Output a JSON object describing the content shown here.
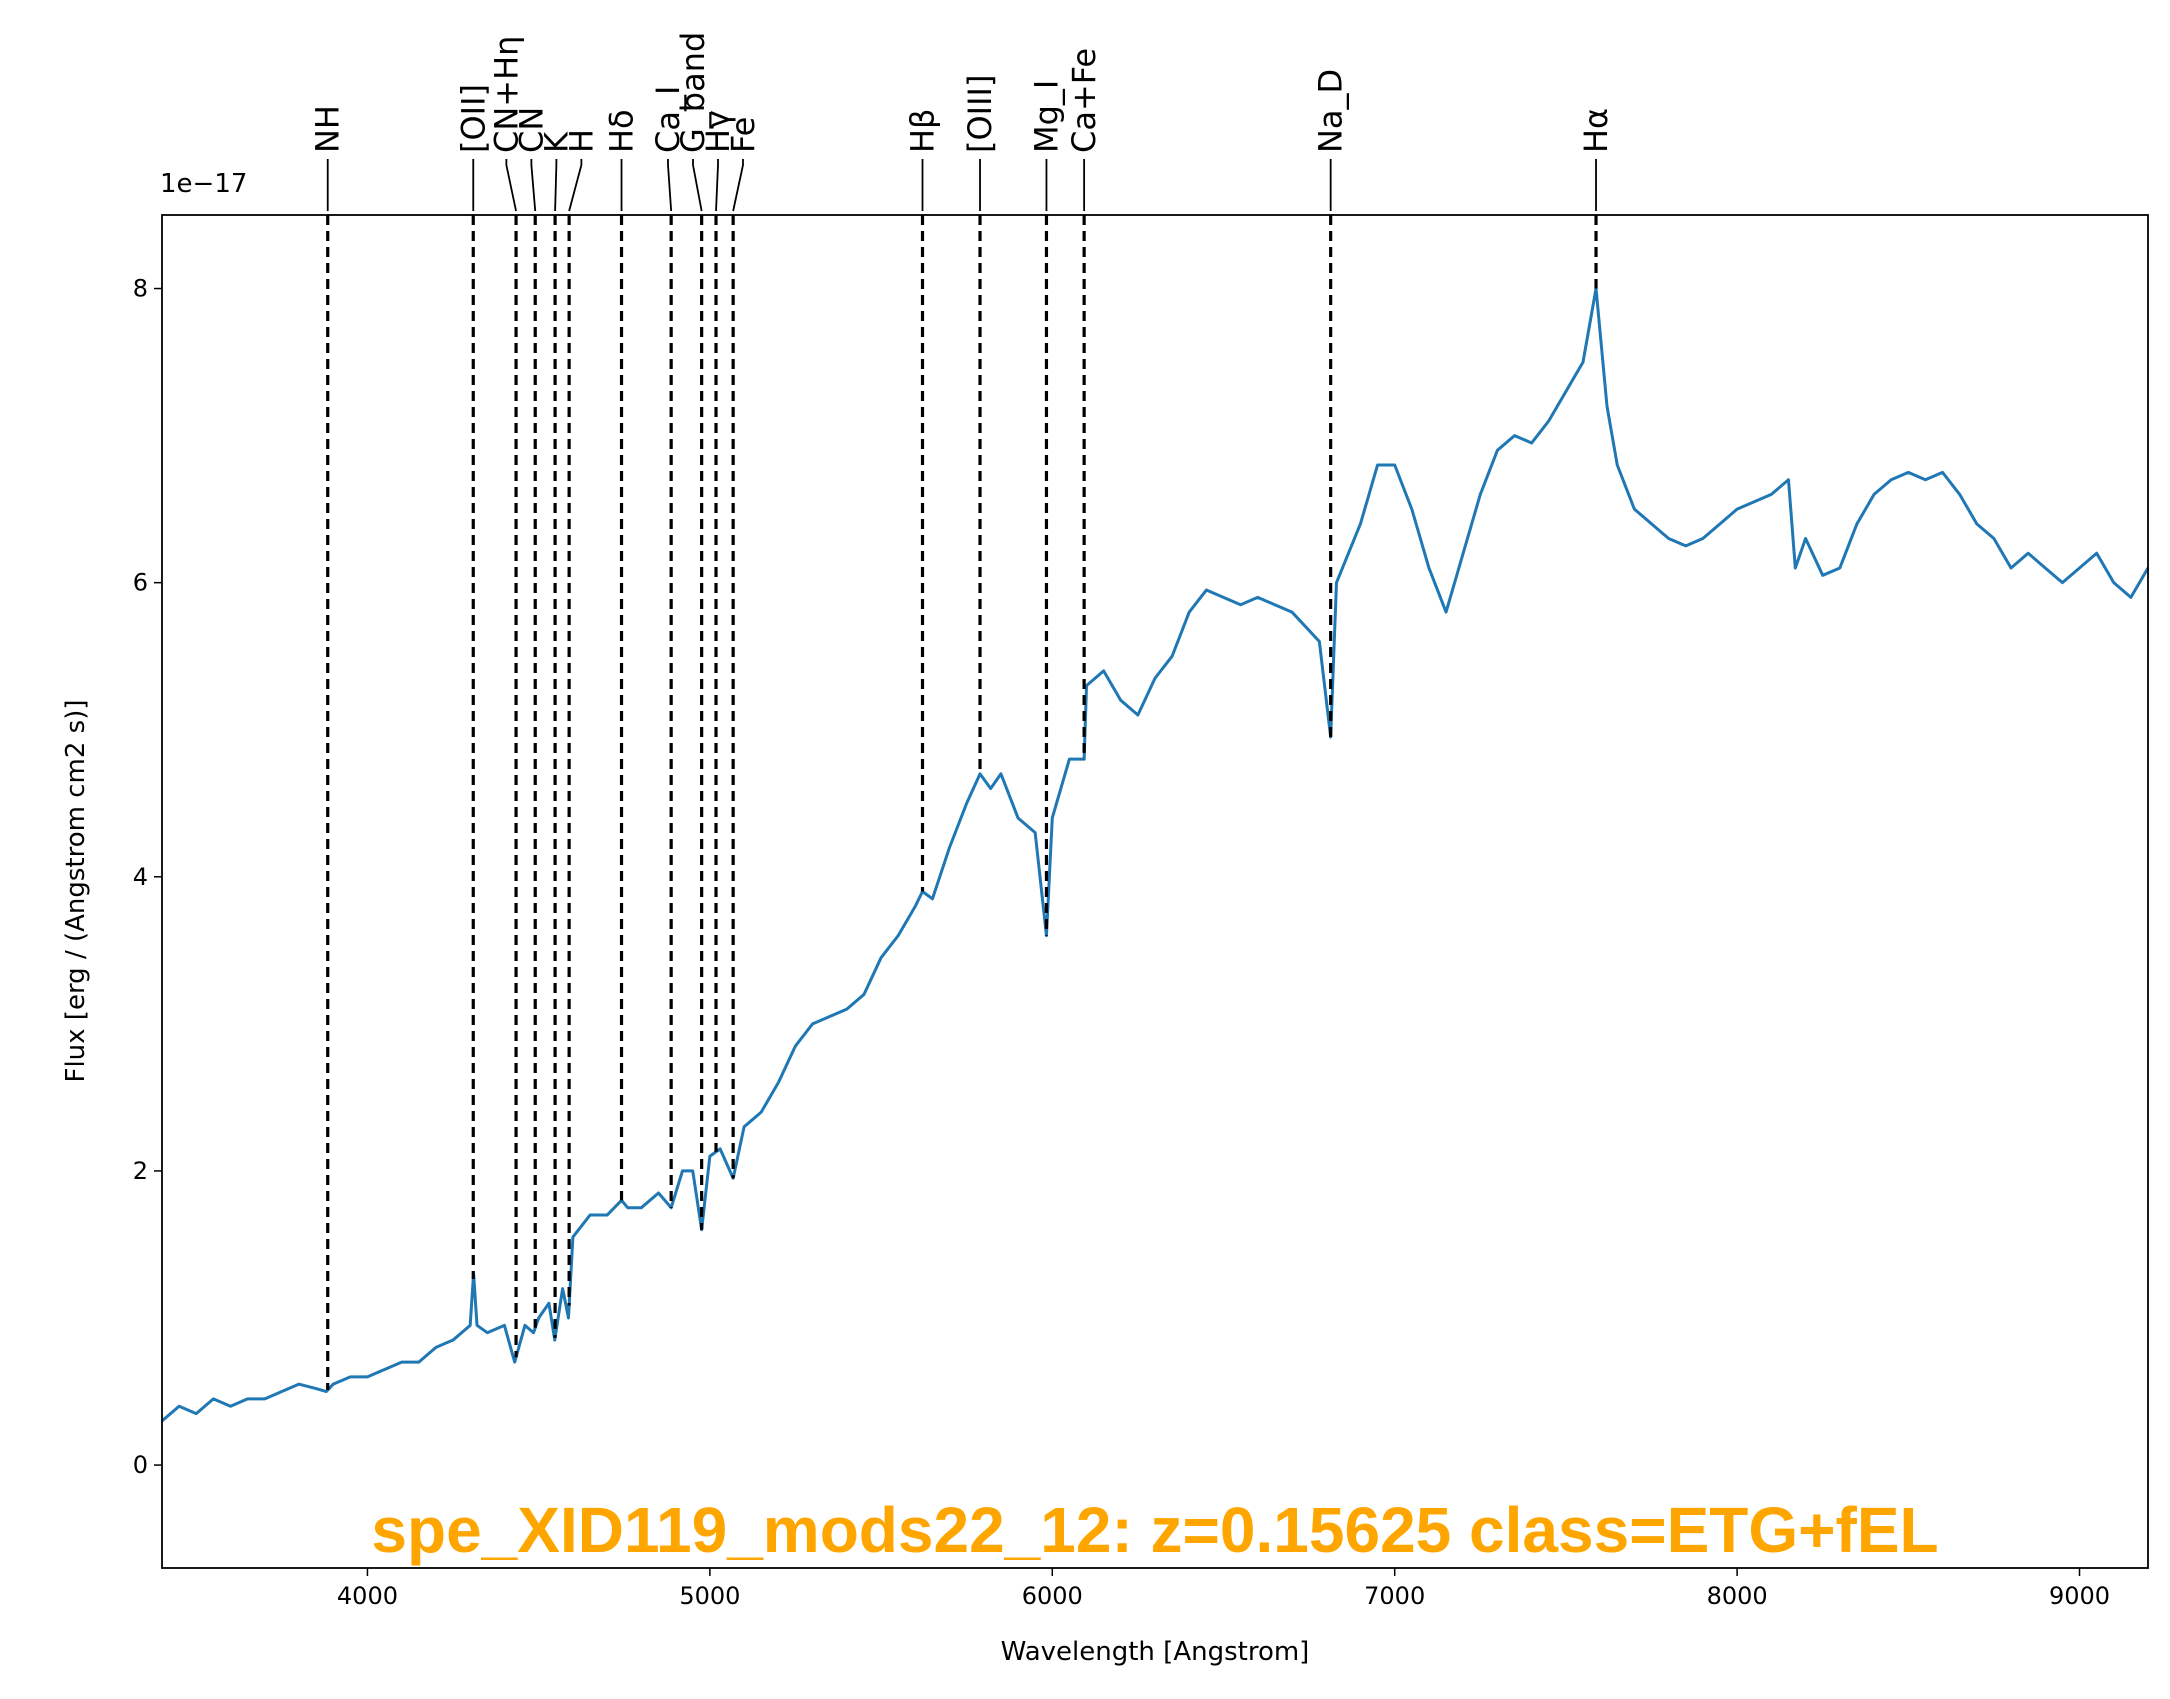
{
  "chart_data": {
    "type": "line",
    "title": "spe_XID119_mods22_12: z=0.15625 class=ETG+fEL",
    "x_label": "Wavelength [Angstrom]",
    "y_label": "Flux [erg / (Angstrom cm2 s)]",
    "y_offset_label": "1e−17",
    "color": "#1f77b4",
    "title_color": "#ffa500",
    "xlim": [
      3400,
      9200
    ],
    "ylim": [
      -0.7,
      8.5
    ],
    "xticks": [
      4000,
      5000,
      6000,
      7000,
      8000,
      9000
    ],
    "yticks": [
      0,
      2,
      4,
      6,
      8
    ],
    "x": [
      3400,
      3450,
      3500,
      3550,
      3600,
      3650,
      3700,
      3750,
      3800,
      3850,
      3880,
      3900,
      3950,
      4000,
      4050,
      4100,
      4150,
      4200,
      4250,
      4300,
      4310,
      4320,
      4350,
      4400,
      4430,
      4460,
      4485,
      4500,
      4530,
      4547,
      4570,
      4587,
      4600,
      4650,
      4700,
      4742,
      4760,
      4800,
      4850,
      4887,
      4920,
      4950,
      4976,
      5000,
      5030,
      5068,
      5100,
      5150,
      5200,
      5250,
      5300,
      5350,
      5400,
      5450,
      5500,
      5550,
      5600,
      5621,
      5650,
      5700,
      5750,
      5789,
      5820,
      5850,
      5900,
      5950,
      5983,
      6000,
      6050,
      6093,
      6100,
      6150,
      6200,
      6250,
      6300,
      6350,
      6400,
      6450,
      6500,
      6550,
      6600,
      6650,
      6700,
      6780,
      6813,
      6830,
      6900,
      6950,
      7000,
      7050,
      7100,
      7150,
      7200,
      7250,
      7300,
      7350,
      7400,
      7450,
      7500,
      7550,
      7588,
      7620,
      7650,
      7700,
      7750,
      7800,
      7850,
      7900,
      7950,
      8000,
      8050,
      8100,
      8150,
      8170,
      8200,
      8250,
      8300,
      8350,
      8400,
      8450,
      8500,
      8550,
      8600,
      8650,
      8700,
      8750,
      8800,
      8850,
      8900,
      8950,
      9000,
      9050,
      9100,
      9150,
      9200
    ],
    "values": [
      0.3,
      0.4,
      0.35,
      0.45,
      0.4,
      0.45,
      0.45,
      0.5,
      0.55,
      0.52,
      0.5,
      0.55,
      0.6,
      0.6,
      0.65,
      0.7,
      0.7,
      0.8,
      0.85,
      0.95,
      1.3,
      0.95,
      0.9,
      0.95,
      0.7,
      0.95,
      0.9,
      1.0,
      1.1,
      0.85,
      1.2,
      1.0,
      1.55,
      1.7,
      1.7,
      1.8,
      1.75,
      1.75,
      1.85,
      1.75,
      2.0,
      2.0,
      1.6,
      2.1,
      2.15,
      1.95,
      2.3,
      2.4,
      2.6,
      2.85,
      3.0,
      3.05,
      3.1,
      3.2,
      3.45,
      3.6,
      3.8,
      3.9,
      3.85,
      4.2,
      4.5,
      4.7,
      4.6,
      4.7,
      4.4,
      4.3,
      3.6,
      4.4,
      4.8,
      4.8,
      5.3,
      5.4,
      5.2,
      5.1,
      5.35,
      5.5,
      5.8,
      5.95,
      5.9,
      5.85,
      5.9,
      5.85,
      5.8,
      5.6,
      4.95,
      6.0,
      6.4,
      6.8,
      6.8,
      6.5,
      6.1,
      5.8,
      6.2,
      6.6,
      6.9,
      7.0,
      6.95,
      7.1,
      7.3,
      7.5,
      8.0,
      7.2,
      6.8,
      6.5,
      6.4,
      6.3,
      6.25,
      6.3,
      6.4,
      6.5,
      6.55,
      6.6,
      6.7,
      6.1,
      6.3,
      6.05,
      6.1,
      6.4,
      6.6,
      6.7,
      6.75,
      6.7,
      6.75,
      6.6,
      6.4,
      6.3,
      6.1,
      6.2,
      6.1,
      6.0,
      6.1,
      6.2,
      6.0,
      5.9,
      6.1
    ],
    "lines": [
      {
        "label": "NH",
        "wavelength": 3884
      },
      {
        "label": "[OII]",
        "wavelength": 4309
      },
      {
        "label": "CN+Hη",
        "wavelength": 4434
      },
      {
        "label": "CN",
        "wavelength": 4490
      },
      {
        "label": "K",
        "wavelength": 4548
      },
      {
        "label": "H",
        "wavelength": 4589
      },
      {
        "label": "Hδ",
        "wavelength": 4742
      },
      {
        "label": "Ca_I",
        "wavelength": 4887
      },
      {
        "label": "G_band",
        "wavelength": 4976
      },
      {
        "label": "Hγ",
        "wavelength": 5018
      },
      {
        "label": "Fe",
        "wavelength": 5068
      },
      {
        "label": "Hβ",
        "wavelength": 5621
      },
      {
        "label": "[OIII]",
        "wavelength": 5789
      },
      {
        "label": "Mg_I",
        "wavelength": 5983
      },
      {
        "label": "Ca+Fe",
        "wavelength": 6093
      },
      {
        "label": "Na_D",
        "wavelength": 6813
      },
      {
        "label": "Hα",
        "wavelength": 7588
      }
    ],
    "line_color": "#000000"
  }
}
